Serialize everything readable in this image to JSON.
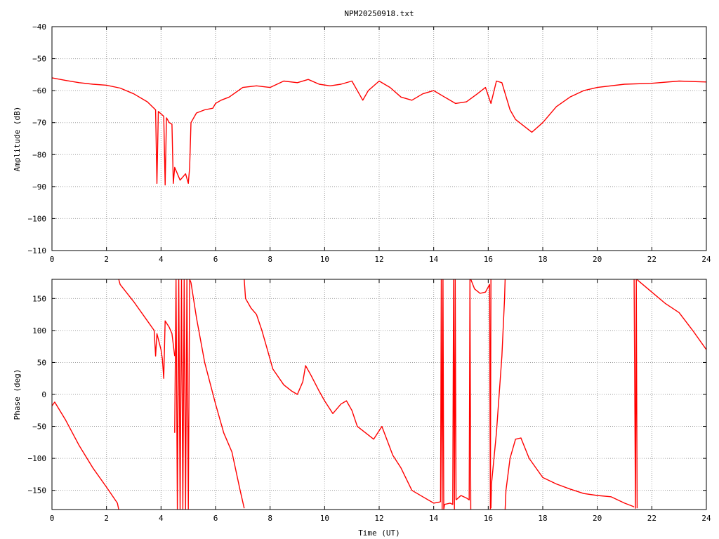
{
  "title": "NPM20250918.txt",
  "line_color": "#ff0000",
  "chart_data": [
    {
      "type": "line",
      "ylabel": "Amplitude (dB)",
      "xlabel": "",
      "xlim": [
        0,
        24
      ],
      "ylim": [
        -110,
        -40
      ],
      "grid": true,
      "x_ticks": [
        0,
        2,
        4,
        6,
        8,
        10,
        12,
        14,
        16,
        18,
        20,
        22,
        24
      ],
      "y_ticks": [
        -40,
        -50,
        -60,
        -70,
        -80,
        -90,
        -100,
        -110
      ],
      "series": [
        {
          "x": [
            0,
            0.5,
            1.0,
            1.5,
            2.0,
            2.5,
            3.0,
            3.5,
            3.8,
            3.85,
            3.9,
            4.1,
            4.15,
            4.2,
            4.3,
            4.4,
            4.45,
            4.5,
            4.7,
            4.9,
            5.0,
            5.05,
            5.1,
            5.3,
            5.6,
            5.9,
            6.0,
            6.2,
            6.5,
            7.0,
            7.5,
            8.0,
            8.5,
            9.0,
            9.4,
            9.8,
            10.2,
            10.6,
            11.0,
            11.4,
            11.6,
            12.0,
            12.4,
            12.8,
            13.2,
            13.6,
            14.0,
            14.4,
            14.8,
            15.2,
            15.6,
            15.9,
            16.1,
            16.3,
            16.5,
            16.8,
            17.0,
            17.3,
            17.6,
            18.0,
            18.5,
            19.0,
            19.5,
            20.0,
            21.0,
            22.0,
            23.0,
            24.0
          ],
          "y": [
            -56,
            -56.8,
            -57.5,
            -58,
            -58.3,
            -59.2,
            -61,
            -63.5,
            -66,
            -89,
            -66.5,
            -68,
            -89.5,
            -68.5,
            -70,
            -70.5,
            -89,
            -84,
            -88,
            -86,
            -89,
            -84,
            -70,
            -67,
            -66,
            -65.5,
            -64,
            -63,
            -62,
            -59,
            -58.5,
            -59,
            -57,
            -57.5,
            -56.5,
            -58,
            -58.5,
            -58,
            -57,
            -63,
            -60,
            -57,
            -59,
            -62,
            -63,
            -61,
            -60,
            -62,
            -64,
            -63.5,
            -61,
            -59,
            -64,
            -57,
            -57.5,
            -66,
            -69,
            -71,
            -73,
            -70,
            -65,
            -62,
            -60,
            -59,
            -58,
            -57.7,
            -57,
            -57.3
          ]
        }
      ]
    },
    {
      "type": "line",
      "ylabel": "Phase (deg)",
      "xlabel": "Time (UT)",
      "xlim": [
        0,
        24
      ],
      "ylim": [
        -180,
        180
      ],
      "grid": true,
      "x_ticks": [
        0,
        2,
        4,
        6,
        8,
        10,
        12,
        14,
        16,
        18,
        20,
        22,
        24
      ],
      "y_ticks": [
        150,
        100,
        50,
        0,
        -50,
        -100,
        -150
      ],
      "series": [
        {
          "segments": [
            {
              "x": [
                0,
                0.1,
                0.5,
                1.0,
                1.5,
                2.0,
                2.4,
                2.45
              ],
              "y": [
                -18,
                -12,
                -40,
                -80,
                -115,
                -145,
                -170,
                -180
              ]
            },
            {
              "x": [
                2.45,
                2.5,
                3.0,
                3.5,
                3.75,
                3.8,
                3.85,
                4.0,
                4.05,
                4.1,
                4.15,
                4.3,
                4.4,
                4.5
              ],
              "y": [
                180,
                172,
                145,
                115,
                100,
                60,
                95,
                70,
                55,
                25,
                115,
                105,
                95,
                60
              ]
            },
            {
              "x": [
                4.5,
                4.55,
                4.6,
                4.65,
                4.7,
                4.75,
                4.8,
                4.85,
                4.9,
                4.95,
                5.0,
                5.05,
                5.1
              ],
              "y": [
                -60,
                180,
                -180,
                180,
                -180,
                180,
                -180,
                180,
                -180,
                180,
                -180,
                180,
                175
              ]
            },
            {
              "x": [
                5.1,
                5.3,
                5.6,
                6.0,
                6.3,
                6.6,
                6.9,
                7.05
              ],
              "y": [
                175,
                120,
                50,
                -15,
                -60,
                -90,
                -150,
                -178
              ]
            },
            {
              "x": [
                7.05,
                7.1,
                7.3,
                7.5,
                7.7,
                7.9,
                8.1,
                8.5,
                8.8,
                9.0,
                9.2,
                9.3,
                9.5,
                9.8,
                10.0,
                10.3,
                10.6,
                10.8,
                11.0,
                11.2,
                11.5,
                11.8,
                12.1,
                12.5,
                12.8,
                13.2,
                13.6,
                14.0,
                14.25
              ],
              "y": [
                180,
                150,
                135,
                125,
                100,
                70,
                40,
                15,
                5,
                0,
                20,
                45,
                30,
                5,
                -10,
                -30,
                -15,
                -10,
                -25,
                -50,
                -60,
                -70,
                -50,
                -95,
                -115,
                -150,
                -160,
                -170,
                -168
              ]
            },
            {
              "x": [
                14.25,
                14.28,
                14.31,
                14.34,
                14.37,
                14.4,
                14.6,
                14.7,
                14.73,
                14.76,
                14.79,
                14.82
              ],
              "y": [
                -168,
                180,
                -180,
                180,
                -180,
                -172,
                -170,
                -172,
                180,
                -180,
                180,
                -165
              ]
            },
            {
              "x": [
                14.82,
                15.0,
                15.2,
                15.3,
                15.33,
                15.36
              ],
              "y": [
                -165,
                -158,
                -162,
                -165,
                180,
                -180
              ]
            },
            {
              "x": [
                15.36,
                15.5,
                15.7,
                15.9,
                16.05,
                16.08,
                16.1
              ],
              "y": [
                180,
                165,
                158,
                160,
                172,
                -180,
                180
              ]
            },
            {
              "x": [
                16.1,
                16.12,
                16.3,
                16.5,
                16.6,
                16.62
              ],
              "y": [
                -178,
                -140,
                -60,
                60,
                150,
                180
              ]
            },
            {
              "x": [
                16.62,
                16.65,
                16.8,
                17.0,
                17.2,
                17.5,
                18.0,
                18.5,
                19.0,
                19.5,
                20.0,
                20.5,
                21.0,
                21.3,
                21.35
              ],
              "y": [
                -180,
                -150,
                -100,
                -70,
                -68,
                -100,
                -130,
                -140,
                -148,
                -155,
                -158,
                -160,
                -170,
                -175,
                -176
              ]
            },
            {
              "x": [
                21.35,
                21.4,
                21.43,
                21.46
              ],
              "y": [
                180,
                -178,
                180,
                -178
              ]
            },
            {
              "x": [
                21.46,
                21.5,
                22.0,
                22.5,
                23.0,
                23.5,
                24.0
              ],
              "y": [
                180,
                178,
                160,
                142,
                128,
                100,
                70
              ]
            }
          ]
        }
      ]
    }
  ]
}
